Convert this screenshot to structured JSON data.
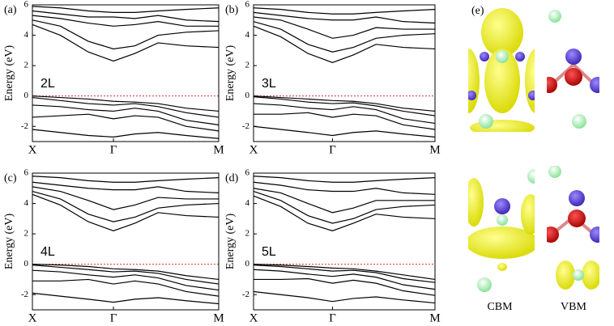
{
  "chart_data": [
    {
      "type": "line",
      "panel_label": "(a)",
      "annotation": "2L",
      "ylabel": "Energy (eV)",
      "color": "#000000",
      "ylim": [
        -3,
        6
      ],
      "yticks": [
        -2,
        0,
        2,
        4,
        6
      ],
      "xlim": [
        0,
        2
      ],
      "xticks": [
        {
          "value": 0,
          "label": "X"
        },
        {
          "value": 0.87,
          "label": "Γ"
        },
        {
          "value": 2,
          "label": "M"
        }
      ],
      "reference_line": {
        "value": 0,
        "color": "#e03030"
      },
      "x": [
        0,
        0.3,
        0.6,
        0.87,
        1.1,
        1.35,
        1.65,
        2
      ],
      "series": [
        {
          "values": [
            4.7,
            4.0,
            2.9,
            2.3,
            2.8,
            3.5,
            3.3,
            3.2
          ]
        },
        {
          "values": [
            5.0,
            4.6,
            3.6,
            3.1,
            3.3,
            4.0,
            4.2,
            4.3
          ]
        },
        {
          "values": [
            5.3,
            5.1,
            4.8,
            4.6,
            4.7,
            4.9,
            4.6,
            4.6
          ]
        },
        {
          "values": [
            5.6,
            5.4,
            5.2,
            5.2,
            5.1,
            5.3,
            5.0,
            4.9
          ]
        },
        {
          "values": [
            5.9,
            5.8,
            5.6,
            5.5,
            5.5,
            5.6,
            5.7,
            5.8
          ]
        },
        {
          "values": [
            0,
            -0.1,
            -0.2,
            -0.35,
            -0.4,
            -0.5,
            -0.8,
            -1.0
          ]
        },
        {
          "values": [
            -0.1,
            -0.3,
            -0.5,
            -0.6,
            -0.5,
            -0.7,
            -1.1,
            -1.4
          ]
        },
        {
          "values": [
            -0.6,
            -0.7,
            -0.9,
            -1.0,
            -0.8,
            -1.0,
            -1.6,
            -1.9
          ]
        },
        {
          "values": [
            -1.4,
            -1.3,
            -1.2,
            -1.5,
            -1.3,
            -1.4,
            -2.0,
            -2.3
          ]
        },
        {
          "values": [
            -2.2,
            -2.4,
            -2.6,
            -2.7,
            -2.5,
            -2.4,
            -2.6,
            -2.8
          ]
        }
      ]
    },
    {
      "type": "line",
      "panel_label": "(b)",
      "annotation": "3L",
      "ylabel": "Energy (eV)",
      "color": "#000000",
      "ylim": [
        -3,
        6
      ],
      "yticks": [
        -2,
        0,
        2,
        4,
        6
      ],
      "xlim": [
        0,
        2
      ],
      "xticks": [
        {
          "value": 0,
          "label": "X"
        },
        {
          "value": 0.87,
          "label": "Γ"
        },
        {
          "value": 2,
          "label": "M"
        }
      ],
      "reference_line": {
        "value": 0,
        "color": "#e03030"
      },
      "x": [
        0,
        0.3,
        0.6,
        0.87,
        1.1,
        1.35,
        1.65,
        2
      ],
      "series": [
        {
          "values": [
            4.6,
            3.9,
            2.8,
            2.2,
            2.7,
            3.4,
            3.2,
            3.1
          ]
        },
        {
          "values": [
            4.9,
            4.4,
            3.4,
            2.9,
            3.2,
            3.8,
            4.0,
            4.1
          ]
        },
        {
          "values": [
            5.2,
            5.0,
            4.4,
            3.8,
            4.0,
            4.5,
            4.4,
            4.4
          ]
        },
        {
          "values": [
            5.5,
            5.3,
            5.1,
            5.0,
            5.0,
            5.2,
            4.9,
            4.8
          ]
        },
        {
          "values": [
            5.8,
            5.7,
            5.5,
            5.4,
            5.4,
            5.5,
            5.6,
            5.7
          ]
        },
        {
          "values": [
            0,
            -0.1,
            -0.2,
            -0.3,
            -0.35,
            -0.5,
            -0.8,
            -1.0
          ]
        },
        {
          "values": [
            -0.05,
            -0.2,
            -0.4,
            -0.5,
            -0.45,
            -0.65,
            -1.0,
            -1.3
          ]
        },
        {
          "values": [
            -0.5,
            -0.6,
            -0.8,
            -0.9,
            -0.7,
            -0.9,
            -1.5,
            -1.8
          ]
        },
        {
          "values": [
            -1.2,
            -1.2,
            -1.1,
            -1.4,
            -1.2,
            -1.3,
            -1.9,
            -2.2
          ]
        },
        {
          "values": [
            -2.0,
            -2.2,
            -2.4,
            -2.6,
            -2.4,
            -2.3,
            -2.5,
            -2.7
          ]
        }
      ]
    },
    {
      "type": "line",
      "panel_label": "(c)",
      "annotation": "4L",
      "ylabel": "Energy (eV)",
      "color": "#000000",
      "ylim": [
        -3,
        6
      ],
      "yticks": [
        -2,
        0,
        2,
        4,
        6
      ],
      "xlim": [
        0,
        2
      ],
      "xticks": [
        {
          "value": 0,
          "label": "X"
        },
        {
          "value": 0.87,
          "label": "Γ"
        },
        {
          "value": 2,
          "label": "M"
        }
      ],
      "reference_line": {
        "value": 0,
        "color": "#e03030"
      },
      "x": [
        0,
        0.3,
        0.6,
        0.87,
        1.1,
        1.35,
        1.65,
        2
      ],
      "series": [
        {
          "values": [
            4.6,
            3.9,
            2.8,
            2.2,
            2.7,
            3.4,
            3.2,
            3.1
          ]
        },
        {
          "values": [
            4.8,
            4.3,
            3.3,
            2.8,
            3.1,
            3.7,
            3.9,
            4.0
          ]
        },
        {
          "values": [
            5.1,
            4.8,
            4.2,
            3.6,
            3.9,
            4.4,
            4.3,
            4.3
          ]
        },
        {
          "values": [
            5.4,
            5.2,
            5.0,
            4.9,
            4.9,
            5.1,
            4.8,
            4.7
          ]
        },
        {
          "values": [
            5.8,
            5.7,
            5.5,
            5.4,
            5.4,
            5.5,
            5.6,
            5.7
          ]
        },
        {
          "values": [
            0,
            -0.05,
            -0.15,
            -0.3,
            -0.35,
            -0.45,
            -0.75,
            -1.0
          ]
        },
        {
          "values": [
            -0.05,
            -0.2,
            -0.35,
            -0.5,
            -0.45,
            -0.6,
            -1.0,
            -1.3
          ]
        },
        {
          "values": [
            -0.4,
            -0.5,
            -0.7,
            -0.85,
            -0.7,
            -0.9,
            -1.4,
            -1.7
          ]
        },
        {
          "values": [
            -1.1,
            -1.1,
            -1.0,
            -1.3,
            -1.1,
            -1.3,
            -1.8,
            -2.1
          ]
        },
        {
          "values": [
            -1.9,
            -2.1,
            -2.3,
            -2.5,
            -2.3,
            -2.2,
            -2.4,
            -2.6
          ]
        }
      ]
    },
    {
      "type": "line",
      "panel_label": "(d)",
      "annotation": "5L",
      "ylabel": "Energy (eV)",
      "color": "#000000",
      "ylim": [
        -3,
        6
      ],
      "yticks": [
        -2,
        0,
        2,
        4,
        6
      ],
      "xlim": [
        0,
        2
      ],
      "xticks": [
        {
          "value": 0,
          "label": "X"
        },
        {
          "value": 0.87,
          "label": "Γ"
        },
        {
          "value": 2,
          "label": "M"
        }
      ],
      "reference_line": {
        "value": 0,
        "color": "#e03030"
      },
      "x": [
        0,
        0.3,
        0.6,
        0.87,
        1.1,
        1.35,
        1.65,
        2
      ],
      "series": [
        {
          "values": [
            4.5,
            3.8,
            2.7,
            2.2,
            2.7,
            3.3,
            3.1,
            3.0
          ]
        },
        {
          "values": [
            4.8,
            4.2,
            3.2,
            2.7,
            3.0,
            3.6,
            3.8,
            3.9
          ]
        },
        {
          "values": [
            5.0,
            4.7,
            4.0,
            3.4,
            3.7,
            4.2,
            4.2,
            4.2
          ]
        },
        {
          "values": [
            5.4,
            5.2,
            4.9,
            4.8,
            4.8,
            5.0,
            4.7,
            4.6
          ]
        },
        {
          "values": [
            5.8,
            5.7,
            5.5,
            5.4,
            5.4,
            5.5,
            5.6,
            5.7
          ]
        },
        {
          "values": [
            0,
            -0.05,
            -0.15,
            -0.25,
            -0.3,
            -0.45,
            -0.7,
            -1.0
          ]
        },
        {
          "values": [
            -0.05,
            -0.15,
            -0.3,
            -0.45,
            -0.4,
            -0.55,
            -0.95,
            -1.2
          ]
        },
        {
          "values": [
            -0.35,
            -0.45,
            -0.65,
            -0.8,
            -0.65,
            -0.85,
            -1.35,
            -1.65
          ]
        },
        {
          "values": [
            -1.0,
            -1.0,
            -0.95,
            -1.25,
            -1.05,
            -1.25,
            -1.75,
            -2.05
          ]
        },
        {
          "values": [
            -1.8,
            -2.0,
            -2.2,
            -2.45,
            -2.25,
            -2.15,
            -2.35,
            -2.55
          ]
        }
      ]
    }
  ],
  "panel_e": {
    "label": "(e)",
    "columns": [
      "CBM",
      "VBM"
    ]
  }
}
